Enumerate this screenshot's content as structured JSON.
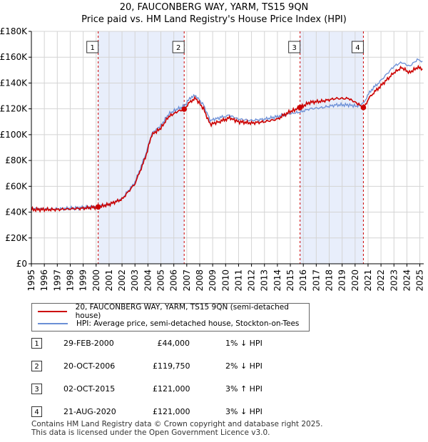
{
  "chart_data": {
    "type": "line",
    "title": "20, FAUCONBERG WAY, YARM, TS15 9QN",
    "subtitle": "Price paid vs. HM Land Registry's House Price Index (HPI)",
    "xlabel": "",
    "ylabel": "",
    "xlim": [
      1995,
      2025.3
    ],
    "ylim": [
      0,
      180000
    ],
    "x_ticks": [
      1995,
      1996,
      1997,
      1998,
      1999,
      2000,
      2001,
      2002,
      2003,
      2004,
      2005,
      2006,
      2007,
      2008,
      2009,
      2010,
      2011,
      2012,
      2013,
      2014,
      2015,
      2016,
      2017,
      2018,
      2019,
      2020,
      2021,
      2022,
      2023,
      2024,
      2025
    ],
    "y_ticks": [
      0,
      20000,
      40000,
      60000,
      80000,
      100000,
      120000,
      140000,
      160000,
      180000
    ],
    "y_tick_labels": [
      "£0",
      "£20K",
      "£40K",
      "£60K",
      "£80K",
      "£100K",
      "£120K",
      "£140K",
      "£160K",
      "£180K"
    ],
    "grid": true,
    "series": [
      {
        "name": "20, FAUCONBERG WAY, YARM, TS15 9QN (semi-detached house)",
        "color": "#cc0000",
        "points": [
          [
            1995,
            42000
          ],
          [
            1996,
            42000
          ],
          [
            1997,
            42000
          ],
          [
            1998,
            42500
          ],
          [
            1999,
            43000
          ],
          [
            2000.16,
            44000
          ],
          [
            2001,
            46000
          ],
          [
            2002,
            50000
          ],
          [
            2003,
            62000
          ],
          [
            2003.8,
            82000
          ],
          [
            2004.3,
            100000
          ],
          [
            2005,
            105000
          ],
          [
            2005.6,
            114000
          ],
          [
            2006.3,
            118000
          ],
          [
            2006.8,
            119750
          ],
          [
            2007.3,
            126000
          ],
          [
            2007.7,
            128000
          ],
          [
            2008.3,
            120000
          ],
          [
            2008.8,
            108000
          ],
          [
            2009.5,
            110000
          ],
          [
            2010.3,
            113000
          ],
          [
            2011,
            110000
          ],
          [
            2012,
            109000
          ],
          [
            2013,
            110000
          ],
          [
            2014,
            112000
          ],
          [
            2014.8,
            117000
          ],
          [
            2015.75,
            121000
          ],
          [
            2016.5,
            125000
          ],
          [
            2017.5,
            126000
          ],
          [
            2018.5,
            128000
          ],
          [
            2019.5,
            128000
          ],
          [
            2020.2,
            124000
          ],
          [
            2020.64,
            121000
          ],
          [
            2021.2,
            130000
          ],
          [
            2022,
            138000
          ],
          [
            2023,
            148000
          ],
          [
            2023.6,
            152000
          ],
          [
            2024.2,
            148000
          ],
          [
            2024.8,
            152000
          ],
          [
            2025.2,
            151000
          ]
        ]
      },
      {
        "name": "HPI: Average price, semi-detached house, Stockton-on-Tees",
        "color": "#6b8fd6",
        "points": [
          [
            1995,
            43000
          ],
          [
            1996,
            42500
          ],
          [
            1997,
            42500
          ],
          [
            1998,
            43000
          ],
          [
            1999,
            43500
          ],
          [
            2000.16,
            44500
          ],
          [
            2001,
            46000
          ],
          [
            2002,
            50500
          ],
          [
            2003,
            63000
          ],
          [
            2003.8,
            84000
          ],
          [
            2004.3,
            101000
          ],
          [
            2005,
            107000
          ],
          [
            2005.6,
            116000
          ],
          [
            2006.3,
            120000
          ],
          [
            2006.8,
            122000
          ],
          [
            2007.3,
            129000
          ],
          [
            2007.7,
            130000
          ],
          [
            2008.3,
            123000
          ],
          [
            2008.8,
            111000
          ],
          [
            2009.5,
            113000
          ],
          [
            2010.3,
            115000
          ],
          [
            2011,
            112000
          ],
          [
            2012,
            111000
          ],
          [
            2013,
            112000
          ],
          [
            2014,
            114000
          ],
          [
            2014.8,
            116000
          ],
          [
            2015.75,
            117500
          ],
          [
            2016.5,
            120000
          ],
          [
            2017.5,
            121000
          ],
          [
            2018.5,
            123000
          ],
          [
            2019.5,
            123000
          ],
          [
            2020.2,
            122000
          ],
          [
            2020.64,
            124500
          ],
          [
            2021.2,
            134000
          ],
          [
            2022,
            142000
          ],
          [
            2023,
            153000
          ],
          [
            2023.6,
            156000
          ],
          [
            2024.2,
            153000
          ],
          [
            2024.8,
            158000
          ],
          [
            2025.2,
            157000
          ]
        ]
      }
    ],
    "sales": [
      {
        "label": "1",
        "x": 2000.16,
        "y": 44000
      },
      {
        "label": "2",
        "x": 2006.8,
        "y": 119750
      },
      {
        "label": "3",
        "x": 2015.75,
        "y": 121000
      },
      {
        "label": "4",
        "x": 2020.64,
        "y": 121000
      }
    ]
  },
  "legend": {
    "items": [
      {
        "label": "20, FAUCONBERG WAY, YARM, TS15 9QN (semi-detached house)",
        "color": "#cc0000"
      },
      {
        "label": "HPI: Average price, semi-detached house, Stockton-on-Tees",
        "color": "#6b8fd6"
      }
    ]
  },
  "transactions": [
    {
      "num": "1",
      "date": "29-FEB-2000",
      "price": "£44,000",
      "hpi": "1% ↓ HPI"
    },
    {
      "num": "2",
      "date": "20-OCT-2006",
      "price": "£119,750",
      "hpi": "2% ↓ HPI"
    },
    {
      "num": "3",
      "date": "02-OCT-2015",
      "price": "£121,000",
      "hpi": "3% ↑ HPI"
    },
    {
      "num": "4",
      "date": "21-AUG-2020",
      "price": "£121,000",
      "hpi": "3% ↓ HPI"
    }
  ],
  "footer": {
    "line1": "Contains HM Land Registry data © Crown copyright and database right 2025.",
    "line2": "This data is licensed under the Open Government Licence v3.0."
  }
}
